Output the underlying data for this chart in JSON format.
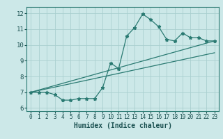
{
  "title": "",
  "xlabel": "Humidex (Indice chaleur)",
  "ylabel": "",
  "background_color": "#cce8e8",
  "grid_color": "#aacfcf",
  "line_color": "#2a7a72",
  "xlim": [
    -0.5,
    23.5
  ],
  "ylim": [
    5.8,
    12.4
  ],
  "xticks": [
    0,
    1,
    2,
    3,
    4,
    5,
    6,
    7,
    8,
    9,
    10,
    11,
    12,
    13,
    14,
    15,
    16,
    17,
    18,
    19,
    20,
    21,
    22,
    23
  ],
  "yticks": [
    6,
    7,
    8,
    9,
    10,
    11,
    12
  ],
  "series1_x": [
    0,
    1,
    2,
    3,
    4,
    5,
    6,
    7,
    8,
    9,
    10,
    11,
    12,
    13,
    14,
    15,
    16,
    17,
    18,
    19,
    20,
    21,
    22,
    23
  ],
  "series1_y": [
    7.0,
    7.0,
    7.0,
    6.85,
    6.5,
    6.5,
    6.6,
    6.6,
    6.6,
    7.3,
    8.85,
    8.5,
    10.55,
    11.1,
    11.95,
    11.6,
    11.15,
    10.35,
    10.25,
    10.75,
    10.45,
    10.45,
    10.25,
    10.25
  ],
  "trend1_x": [
    0,
    23
  ],
  "trend1_y": [
    7.0,
    10.25
  ],
  "trend2_x": [
    0,
    23
  ],
  "trend2_y": [
    7.0,
    9.5
  ]
}
